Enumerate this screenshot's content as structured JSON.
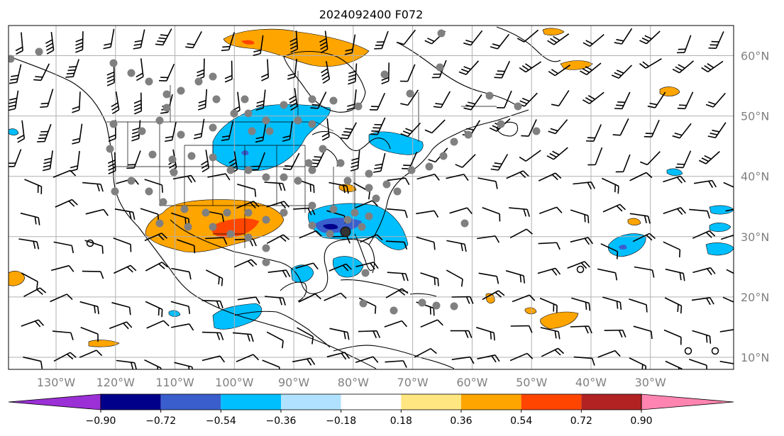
{
  "title": "2024092400 F072",
  "map": {
    "lon_range": [
      -138,
      -16
    ],
    "lat_range": [
      8,
      65
    ],
    "lat_ticks": [
      {
        "value": 60,
        "label": "60°N"
      },
      {
        "value": 50,
        "label": "50°N"
      },
      {
        "value": 40,
        "label": "40°N"
      },
      {
        "value": 30,
        "label": "30°N"
      },
      {
        "value": 20,
        "label": "20°N"
      },
      {
        "value": 10,
        "label": "10°N"
      }
    ],
    "lon_ticks": [
      {
        "value": -130,
        "label": "130°W"
      },
      {
        "value": -120,
        "label": "120°W"
      },
      {
        "value": -110,
        "label": "110°W"
      },
      {
        "value": -100,
        "label": "100°W"
      },
      {
        "value": -90,
        "label": "90°W"
      },
      {
        "value": -80,
        "label": "80°W"
      },
      {
        "value": -70,
        "label": "70°W"
      },
      {
        "value": -60,
        "label": "60°W"
      },
      {
        "value": -50,
        "label": "50°W"
      },
      {
        "value": -40,
        "label": "40°W"
      },
      {
        "value": -30,
        "label": "30°W"
      }
    ],
    "gridlines": true,
    "colors": {
      "land_line": "#000000",
      "grid": "#b0b0b0",
      "station": "#808080"
    }
  },
  "colorbar": {
    "colors": [
      "#9b30d6",
      "#00008b",
      "#3a5fcd",
      "#00bfff",
      "#b0e2ff",
      "#ffffff",
      "#ffe680",
      "#ffa500",
      "#ff4500",
      "#b22222",
      "#ff85b0"
    ],
    "tick_labels": [
      "−0.90",
      "−0.72",
      "−0.54",
      "−0.36",
      "−0.18",
      "0.18",
      "0.36",
      "0.54",
      "0.72",
      "0.90"
    ],
    "extend": "both"
  }
}
